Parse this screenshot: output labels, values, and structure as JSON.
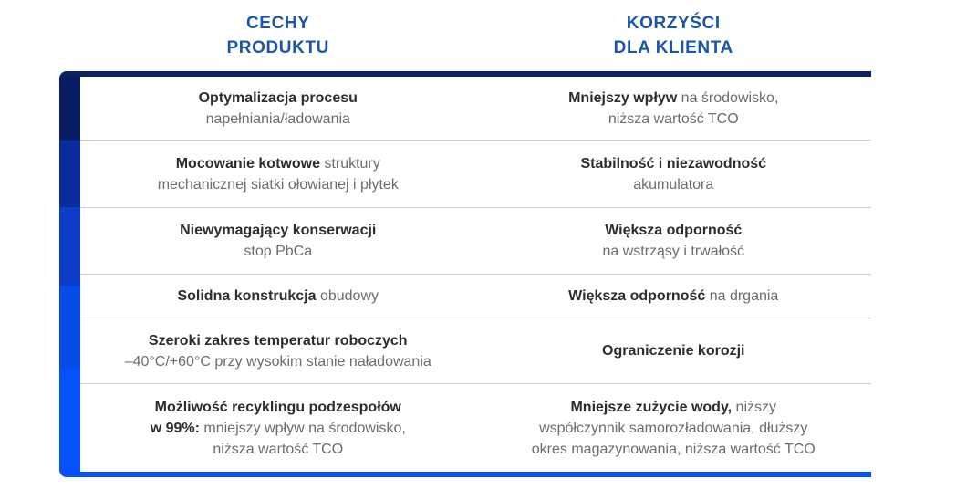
{
  "headers": {
    "features": "CECHY\nPRODUKTU",
    "benefits": "KORZYŚCI\nDLA KLIENTA"
  },
  "colors": {
    "header_text": "#1A57A8",
    "top_accent": "#0D2264",
    "bottom_accent": "#0551FB",
    "bar_step_1": "#0A1C64",
    "bar_step_2": "#0A2D9E",
    "bar_step_3": "#0B3DC9",
    "bar_step_4": "#074BE8",
    "bar_step_5": "#0551FB",
    "divider": "#CFCFCF",
    "text_bold": "#2D2D2D",
    "text_normal": "#6C6C6C"
  },
  "table": {
    "rows": [
      {
        "feature": {
          "runs": [
            {
              "text": "Optymalizacja procesu",
              "bold": true
            },
            {
              "text": "\nnapełniania/ładowania",
              "bold": false
            }
          ]
        },
        "benefit": {
          "runs": [
            {
              "text": "Mniejszy wpływ",
              "bold": true
            },
            {
              "text": " na środowisko,\nniższa wartość TCO",
              "bold": false
            }
          ]
        }
      },
      {
        "feature": {
          "runs": [
            {
              "text": "Mocowanie kotwowe",
              "bold": true
            },
            {
              "text": " struktury\nmechanicznej siatki ołowianej i płytek",
              "bold": false
            }
          ]
        },
        "benefit": {
          "runs": [
            {
              "text": "Stabilność i niezawodność",
              "bold": true
            },
            {
              "text": "\nakumulatora",
              "bold": false
            }
          ]
        }
      },
      {
        "feature": {
          "runs": [
            {
              "text": "Niewymagający konserwacji",
              "bold": true
            },
            {
              "text": "\nstop PbCa",
              "bold": false
            }
          ]
        },
        "benefit": {
          "runs": [
            {
              "text": "Większa odporność",
              "bold": true
            },
            {
              "text": "\nna wstrząsy i trwałość",
              "bold": false
            }
          ]
        }
      },
      {
        "feature": {
          "runs": [
            {
              "text": "Solidna konstrukcja",
              "bold": true
            },
            {
              "text": " obudowy",
              "bold": false
            }
          ]
        },
        "benefit": {
          "runs": [
            {
              "text": "Większa odporność",
              "bold": true
            },
            {
              "text": " na drgania",
              "bold": false
            }
          ]
        }
      },
      {
        "feature": {
          "runs": [
            {
              "text": "Szeroki zakres temperatur roboczych",
              "bold": true
            },
            {
              "text": "\n–40°C/+60°C przy wysokim stanie naładowania",
              "bold": false
            }
          ]
        },
        "benefit": {
          "runs": [
            {
              "text": "Ograniczenie korozji",
              "bold": true
            }
          ]
        }
      },
      {
        "feature": {
          "runs": [
            {
              "text": "Możliwość recyklingu podzespołów\nw 99%:",
              "bold": true
            },
            {
              "text": " mniejszy wpływ na środowisko,\nniższa wartość TCO",
              "bold": false
            }
          ]
        },
        "benefit": {
          "runs": [
            {
              "text": "Mniejsze zużycie wody,",
              "bold": true
            },
            {
              "text": " niższy\nwspółczynnik samorozładowania, dłuższy\nokres magazynowania, niższa wartość TCO",
              "bold": false
            }
          ]
        }
      }
    ]
  }
}
